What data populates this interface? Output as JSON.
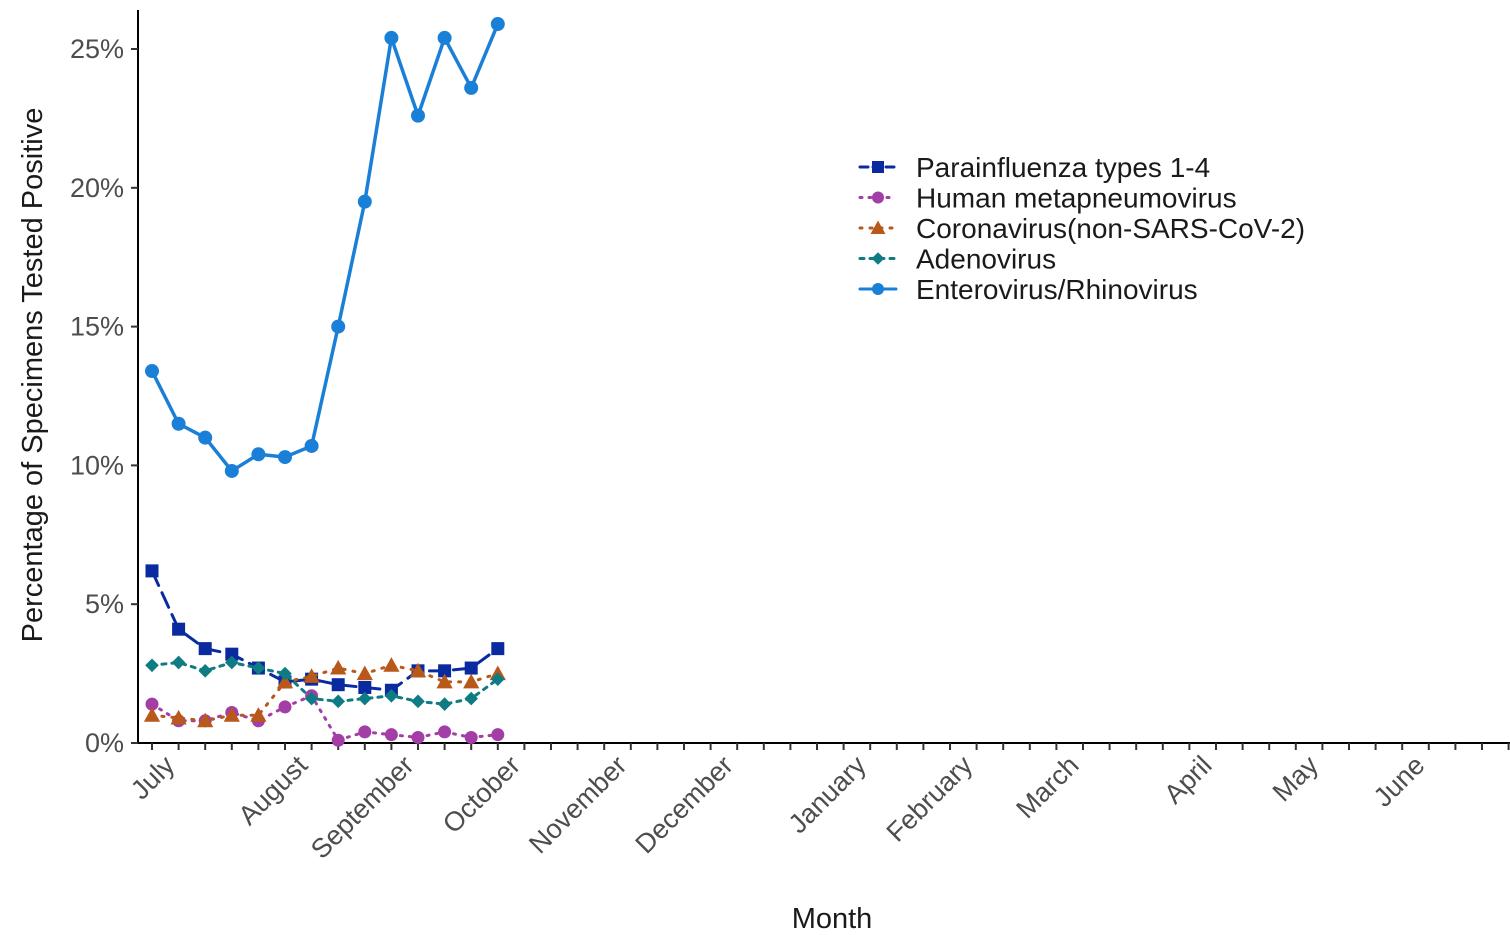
{
  "chart_data": {
    "type": "line",
    "xlabel": "Month",
    "ylabel": "Percentage of Specimens Tested Positive",
    "ylim": [
      0,
      26.3
    ],
    "y_ticks": [
      0,
      5,
      10,
      15,
      20,
      25
    ],
    "y_tick_labels": [
      "0%",
      "5%",
      "10%",
      "15%",
      "20%",
      "25%"
    ],
    "x_count": 52,
    "month_labels": [
      {
        "label": "July",
        "week": 0
      },
      {
        "label": "August",
        "week": 5
      },
      {
        "label": "September",
        "week": 9
      },
      {
        "label": "October",
        "week": 13
      },
      {
        "label": "November",
        "week": 17
      },
      {
        "label": "December",
        "week": 21
      },
      {
        "label": "January",
        "week": 26
      },
      {
        "label": "February",
        "week": 30
      },
      {
        "label": "March",
        "week": 34
      },
      {
        "label": "April",
        "week": 39
      },
      {
        "label": "May",
        "week": 43
      },
      {
        "label": "June",
        "week": 47
      }
    ],
    "grid": false,
    "legend_position": "top-right",
    "x": [
      0,
      1,
      2,
      3,
      4,
      5,
      6,
      7,
      8,
      9,
      10,
      11,
      12,
      13
    ],
    "series": [
      {
        "name": "Parainfluenza types 1-4",
        "color": "#0a2aa0",
        "marker": "square",
        "dash": "16,8",
        "values": [
          6.2,
          4.1,
          3.4,
          3.2,
          2.7,
          2.2,
          2.3,
          2.1,
          2.0,
          1.9,
          2.6,
          2.6,
          2.7,
          3.4
        ]
      },
      {
        "name": "Human metapneumovirus",
        "color": "#a33ea6",
        "marker": "circle",
        "dash": "2,7",
        "values": [
          1.4,
          0.8,
          0.8,
          1.1,
          0.8,
          1.3,
          1.7,
          0.1,
          0.4,
          0.3,
          0.2,
          0.4,
          0.2,
          0.3
        ]
      },
      {
        "name": "Coronavirus(non-SARS-CoV-2)",
        "color": "#b8581a",
        "marker": "triangle",
        "dash": "2,8",
        "values": [
          1.0,
          0.9,
          0.8,
          1.0,
          1.0,
          2.2,
          2.4,
          2.7,
          2.5,
          2.8,
          2.6,
          2.2,
          2.2,
          2.5
        ]
      },
      {
        "name": "Adenovirus",
        "color": "#0f7c84",
        "marker": "diamond",
        "dash": "4,6",
        "values": [
          2.8,
          2.9,
          2.6,
          2.9,
          2.7,
          2.5,
          1.6,
          1.5,
          1.6,
          1.7,
          1.5,
          1.4,
          1.6,
          2.3
        ]
      },
      {
        "name": "Enterovirus/Rhinovirus",
        "color": "#1a7fd6",
        "marker": "circle",
        "dash": "",
        "values": [
          13.4,
          11.5,
          11.0,
          9.8,
          10.4,
          10.3,
          10.7,
          15.0,
          19.5,
          25.4,
          22.6,
          25.4,
          23.6,
          25.9
        ]
      }
    ]
  }
}
